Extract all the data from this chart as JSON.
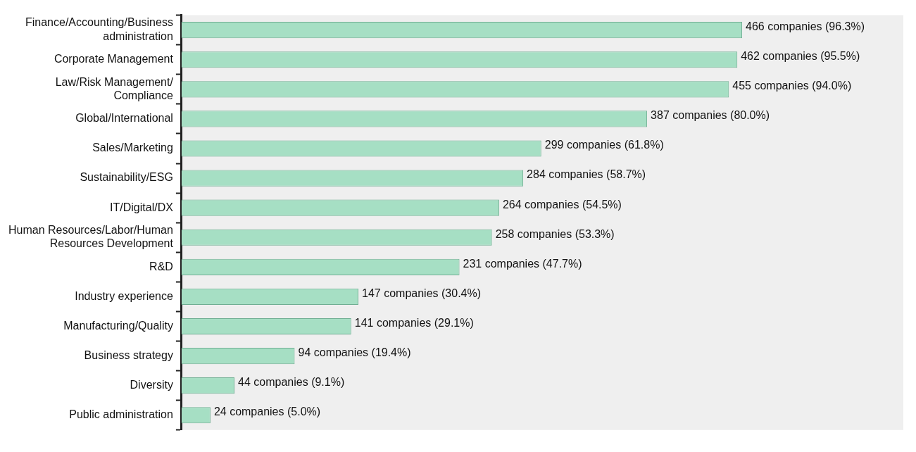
{
  "chart_data": {
    "type": "bar",
    "orientation": "horizontal",
    "categories": [
      "Finance/Accounting/Business administration",
      "Corporate Management",
      "Law/Risk Management/Compliance",
      "Global/International",
      "Sales/Marketing",
      "Sustainability/ESG",
      "IT/Digital/DX",
      "Human Resources/Labor/Human Resources Development",
      "R&D",
      "Industry experience",
      "Manufacturing/Quality",
      "Business strategy",
      "Diversity",
      "Public administration"
    ],
    "values": [
      466,
      462,
      455,
      387,
      299,
      284,
      264,
      258,
      231,
      147,
      141,
      94,
      44,
      24
    ],
    "value_labels": [
      "466 companies (96.3%)",
      "462 companies (95.5%)",
      "455 companies (94.0%)",
      "387 companies (80.0%)",
      "299 companies (61.8%)",
      "284 companies (58.7%)",
      "264 companies (54.5%)",
      "258 companies (53.3%)",
      "231 companies (47.7%)",
      "147 companies (30.4%)",
      "141 companies (29.1%)",
      "94 companies (19.4%)",
      "44 companies (9.1%)",
      "24 companies (5.0%)"
    ],
    "color": "#a6dfc4",
    "xlim": [
      0,
      600
    ],
    "tick_labels": "y",
    "grid": false,
    "legend": false
  }
}
